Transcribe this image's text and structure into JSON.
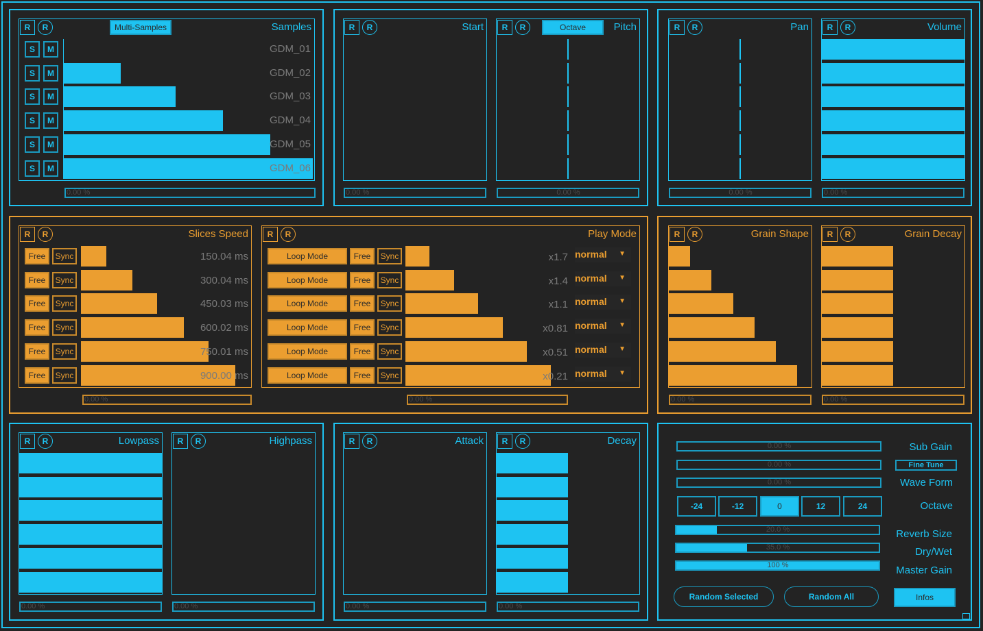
{
  "colors": {
    "accent_blue": "#1ec3f2",
    "accent_orange": "#eb9e30",
    "background": "#232323",
    "value_text": "#7a7a7a"
  },
  "reset_label": "R",
  "samples": {
    "title": "Samples",
    "mode_button": "Multi-Samples",
    "solo_label": "S",
    "mute_label": "M",
    "rows": [
      {
        "name": "GDM_01",
        "level": 0.0
      },
      {
        "name": "GDM_02",
        "level": 0.23
      },
      {
        "name": "GDM_03",
        "level": 0.45
      },
      {
        "name": "GDM_04",
        "level": 0.64
      },
      {
        "name": "GDM_05",
        "level": 0.83
      },
      {
        "name": "GDM_06",
        "level": 1.0
      }
    ],
    "random_amount": "0.00 %"
  },
  "start": {
    "title": "Start",
    "levels": [
      0,
      0,
      0,
      0,
      0,
      0
    ],
    "random_amount": "0.00 %"
  },
  "pitch": {
    "title": "Pitch",
    "mode_button": "Octave",
    "levels": [
      0.5,
      0.5,
      0.5,
      0.5,
      0.5,
      0.5
    ],
    "random_amount": "0.00 %"
  },
  "pan": {
    "title": "Pan",
    "levels": [
      0.5,
      0.5,
      0.5,
      0.5,
      0.5,
      0.5
    ],
    "random_amount": "0.00 %"
  },
  "volume": {
    "title": "Volume",
    "levels": [
      1,
      1,
      1,
      1,
      1,
      1
    ],
    "random_amount": "0.00 %"
  },
  "slices_speed": {
    "title": "Slices Speed",
    "free_label": "Free",
    "sync_label": "Sync",
    "rows": [
      {
        "value": "150.04",
        "unit": "ms",
        "level": 0.153
      },
      {
        "value": "300.04",
        "unit": "ms",
        "level": 0.31
      },
      {
        "value": "450.03",
        "unit": "ms",
        "level": 0.46
      },
      {
        "value": "600.02",
        "unit": "ms",
        "level": 0.62
      },
      {
        "value": "750.01",
        "unit": "ms",
        "level": 0.77
      },
      {
        "value": "900.00",
        "unit": "ms",
        "level": 0.93
      }
    ],
    "random_amount": "0.00 %"
  },
  "play_mode": {
    "title": "Play Mode",
    "loop_label": "Loop Mode",
    "free_label": "Free",
    "sync_label": "Sync",
    "rows": [
      {
        "rate": "x1.7",
        "mode": "normal",
        "level": 0.15
      },
      {
        "rate": "x1.4",
        "mode": "normal",
        "level": 0.3
      },
      {
        "rate": "x1.1",
        "mode": "normal",
        "level": 0.45
      },
      {
        "rate": "x0.81",
        "mode": "normal",
        "level": 0.6
      },
      {
        "rate": "x0.51",
        "mode": "normal",
        "level": 0.75
      },
      {
        "rate": "x0.21",
        "mode": "normal",
        "level": 0.9
      }
    ],
    "random_amount": "0.00 %"
  },
  "grain_shape": {
    "title": "Grain Shape",
    "levels": [
      0.15,
      0.3,
      0.45,
      0.6,
      0.75,
      0.9
    ],
    "random_amount": "0.00 %"
  },
  "grain_decay": {
    "title": "Grain Decay",
    "levels": [
      0.5,
      0.5,
      0.5,
      0.5,
      0.5,
      0.5
    ],
    "random_amount": "0.00 %"
  },
  "lowpass": {
    "title": "Lowpass",
    "levels": [
      1,
      1,
      1,
      1,
      1,
      1
    ],
    "random_amount": "0.00 %"
  },
  "highpass": {
    "title": "Highpass",
    "levels": [
      0,
      0,
      0,
      0,
      0,
      0
    ],
    "random_amount": "0.00 %"
  },
  "attack": {
    "title": "Attack",
    "levels": [
      0,
      0,
      0,
      0,
      0,
      0
    ],
    "random_amount": "0.00 %"
  },
  "decay": {
    "title": "Decay",
    "levels": [
      0.5,
      0.5,
      0.5,
      0.5,
      0.5,
      0.5
    ],
    "random_amount": "0.00 %"
  },
  "master": {
    "sub_gain": {
      "label": "Sub Gain",
      "value": "0.00 %",
      "level": 0
    },
    "fine_tune": {
      "label": "Fine Tune",
      "value": "0.00 %",
      "level": 0
    },
    "wave_form": {
      "label": "Wave Form",
      "value": "0.00 %",
      "level": 0
    },
    "octave": {
      "label": "Octave",
      "options": [
        "-24",
        "-12",
        "0",
        "12",
        "24"
      ],
      "selected": "0"
    },
    "reverb_size": {
      "label": "Reverb Size",
      "value": "20.0 %",
      "level": 0.2
    },
    "dry_wet": {
      "label": "Dry/Wet",
      "value": "35.0 %",
      "level": 0.35
    },
    "master_gain": {
      "label": "Master Gain",
      "value": "100 %",
      "level": 1.0
    },
    "random_selected": "Random Selected",
    "random_all": "Random All",
    "infos": "Infos"
  }
}
